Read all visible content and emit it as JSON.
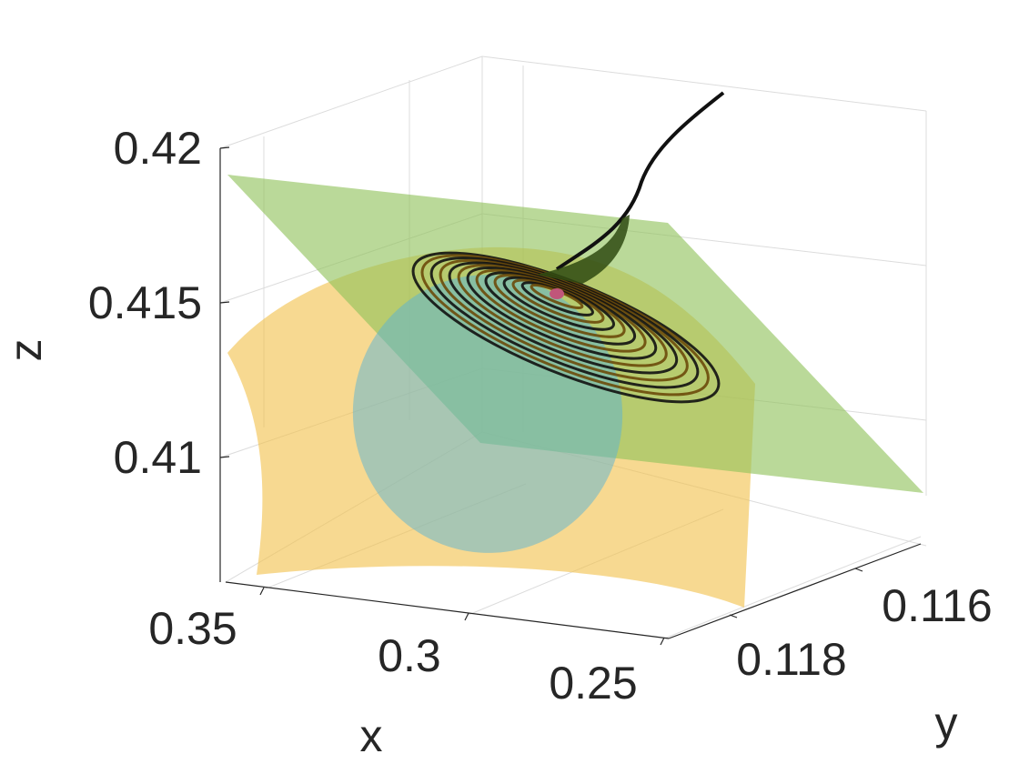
{
  "chart_data": {
    "type": "surface3d",
    "title": "",
    "xlabel": "x",
    "ylabel": "y",
    "zlabel": "z",
    "grid": true,
    "view": "3d perspective, x increasing toward the right, y increasing toward the viewer",
    "xlim": [
      0.24,
      0.36
    ],
    "ylim": [
      0.1155,
      0.1185
    ],
    "zlim": [
      0.406,
      0.421
    ],
    "x_ticks": [
      {
        "value": 0.35,
        "label": "0.35"
      },
      {
        "value": 0.3,
        "label": "0.3"
      },
      {
        "value": 0.25,
        "label": "0.25"
      }
    ],
    "y_ticks": [
      {
        "value": 0.116,
        "label": "0.116"
      },
      {
        "value": 0.118,
        "label": "0.118"
      }
    ],
    "z_ticks": [
      {
        "value": 0.42,
        "label": "0.42"
      },
      {
        "value": 0.415,
        "label": "0.415"
      },
      {
        "value": 0.41,
        "label": "0.41"
      }
    ],
    "surfaces": [
      {
        "kind": "curved sheet",
        "color": "#f2c14e",
        "opacity": 0.65
      },
      {
        "kind": "plane",
        "color": "#8fc15a",
        "opacity": 0.6
      },
      {
        "kind": "ellipsoid",
        "color": "#5ab4d6",
        "opacity": 0.55
      }
    ],
    "trajectory": {
      "kind": "spiral",
      "color": "#000000"
    },
    "point": {
      "color": "#c0567a"
    }
  }
}
